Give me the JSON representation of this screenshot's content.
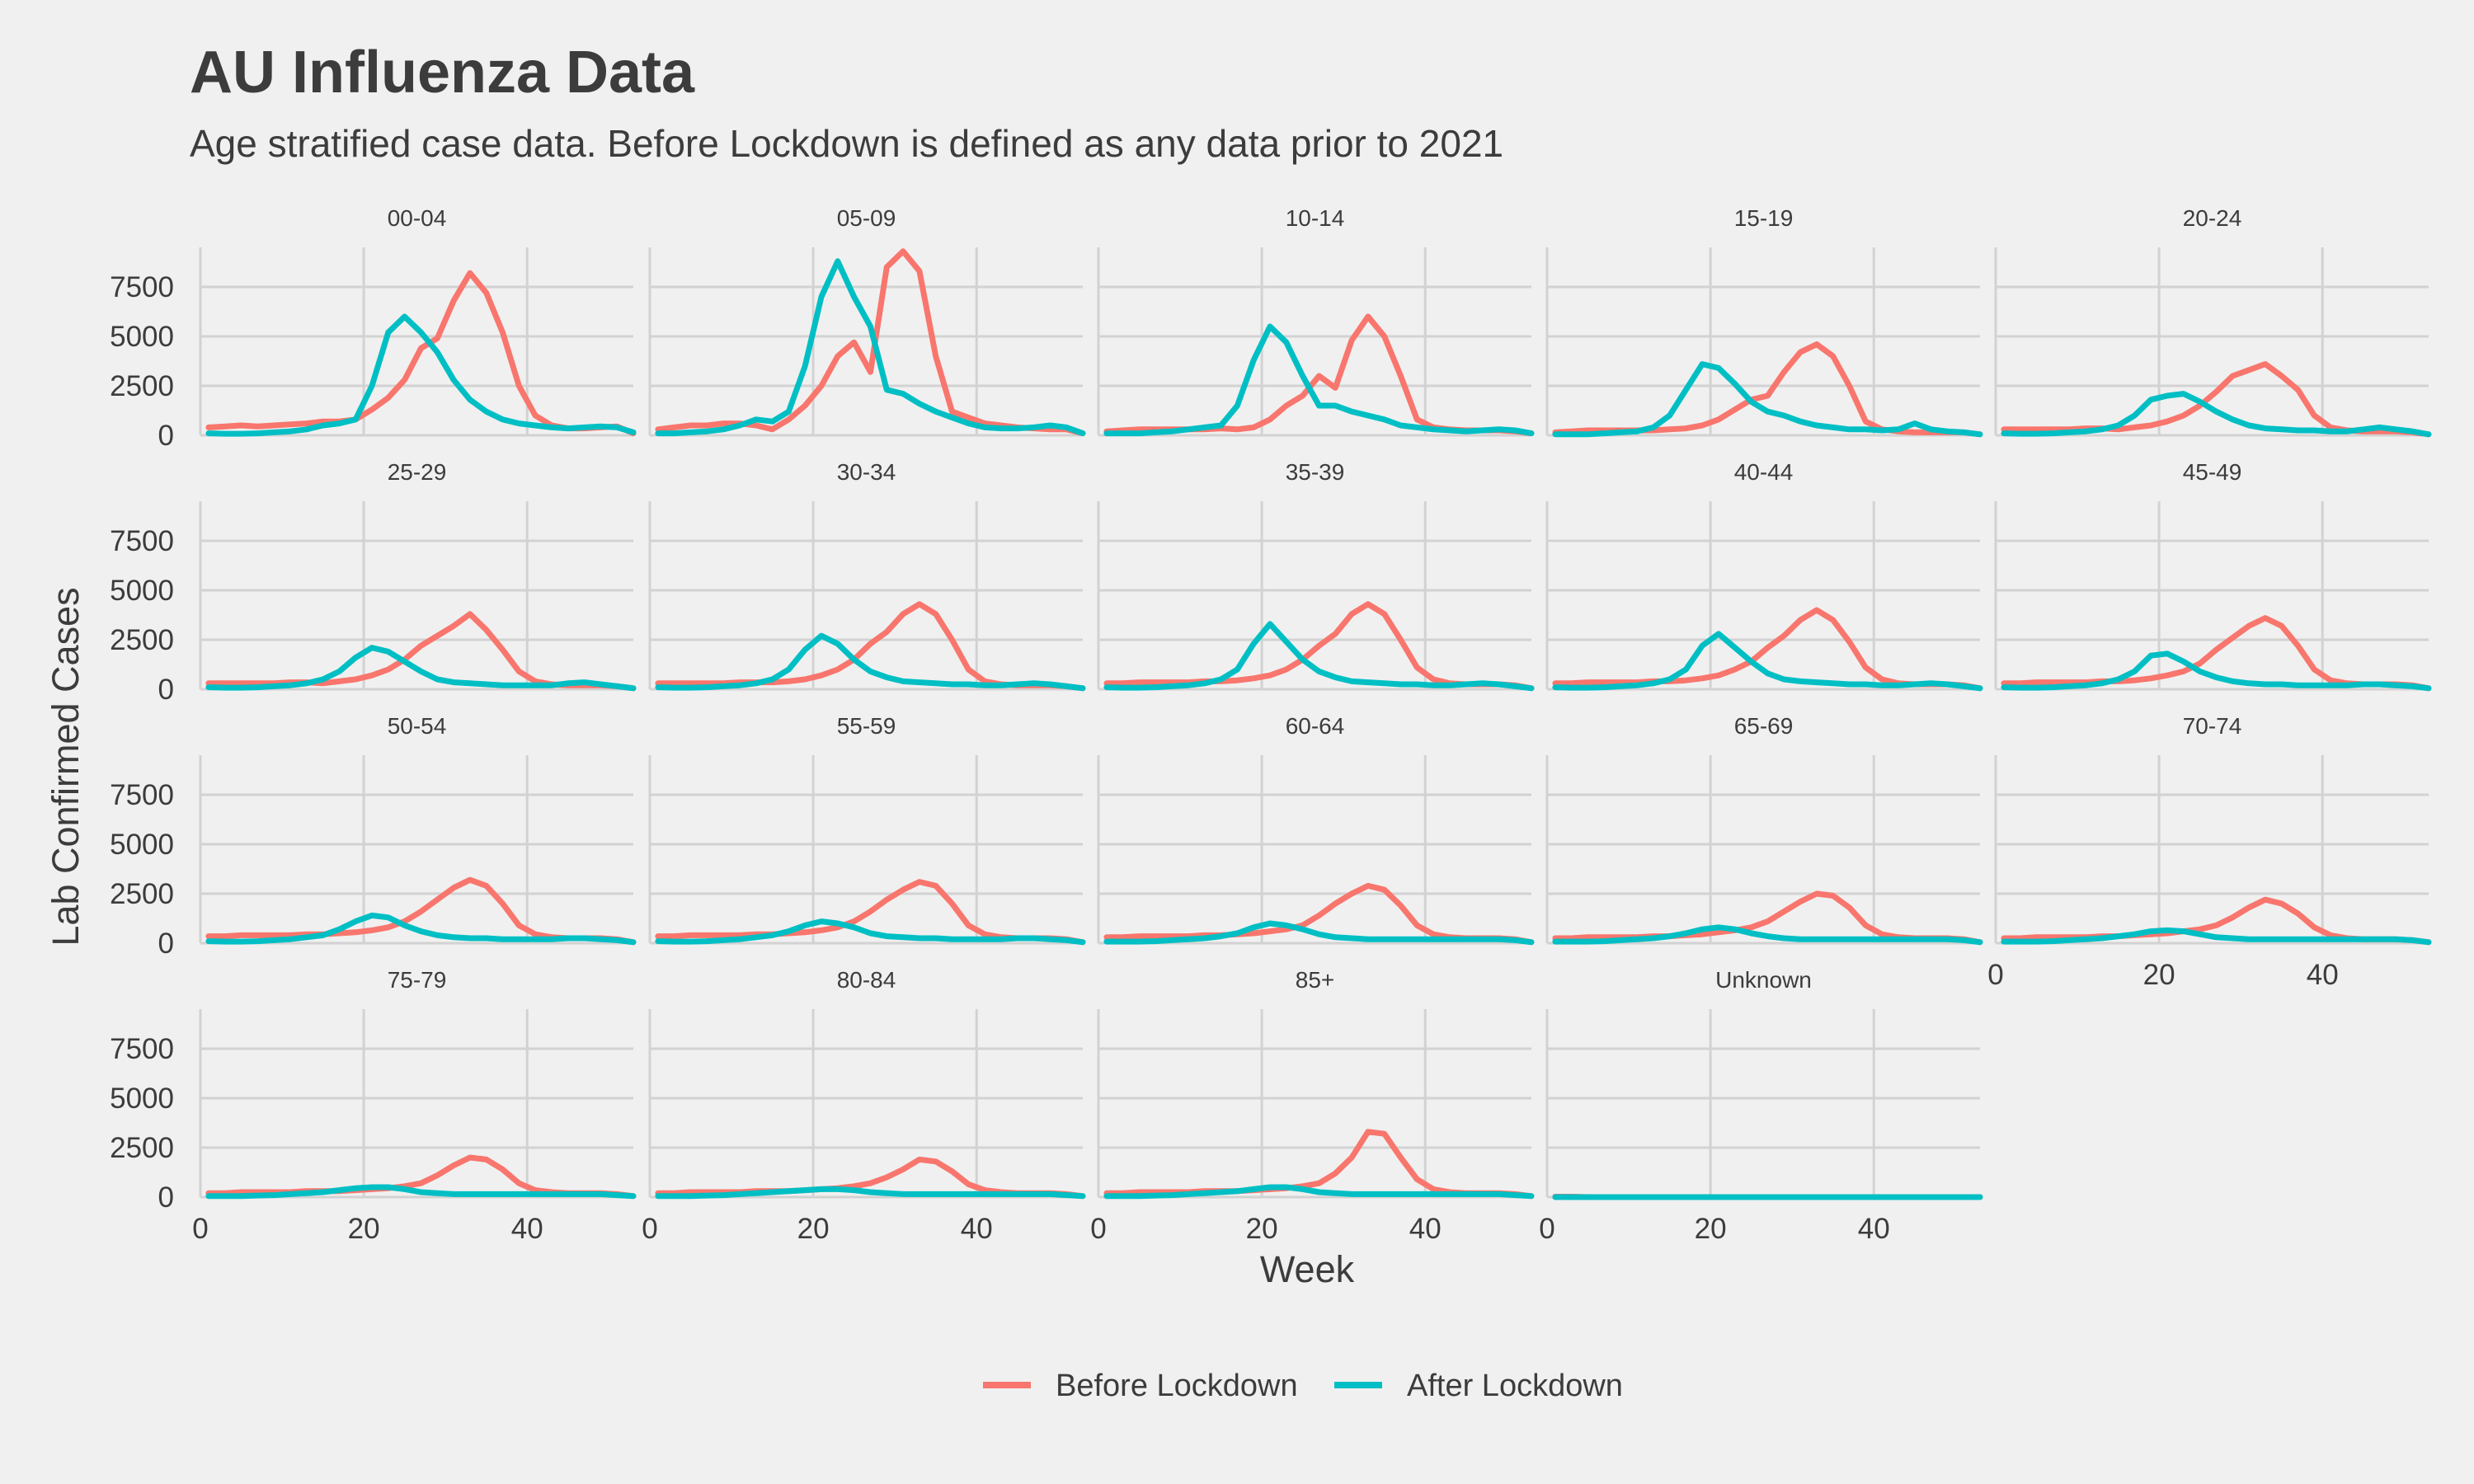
{
  "title": "AU Influenza Data",
  "subtitle": "Age stratified case data. Before Lockdown is defined as any data prior to 2021",
  "chart_data": {
    "type": "line",
    "facet": "wrap",
    "xlabel": "Week",
    "ylabel": "Lab Confirmed Cases",
    "xlim": [
      0,
      53
    ],
    "ylim": [
      0,
      9500
    ],
    "xticks": [
      0,
      20,
      40
    ],
    "yticks": [
      0,
      2500,
      5000,
      7500
    ],
    "grid": true,
    "legend_position": "bottom",
    "legend": [
      {
        "name": "Before Lockdown",
        "color": "#f8766d"
      },
      {
        "name": "After Lockdown",
        "color": "#00bfc4"
      }
    ],
    "x": [
      1,
      3,
      5,
      7,
      9,
      11,
      13,
      15,
      17,
      19,
      21,
      23,
      25,
      27,
      29,
      31,
      33,
      35,
      37,
      39,
      41,
      43,
      45,
      47,
      49,
      51,
      53
    ],
    "panels": [
      {
        "label": "00-04",
        "before": [
          400,
          450,
          500,
          450,
          500,
          550,
          600,
          700,
          700,
          800,
          1300,
          1900,
          2800,
          4400,
          4900,
          6800,
          8200,
          7200,
          5200,
          2500,
          1000,
          500,
          350,
          350,
          400,
          450,
          100
        ],
        "after": [
          100,
          80,
          80,
          100,
          150,
          200,
          300,
          500,
          600,
          800,
          2500,
          5200,
          6000,
          5200,
          4200,
          2800,
          1800,
          1200,
          800,
          600,
          500,
          400,
          350,
          400,
          450,
          400,
          150
        ]
      },
      {
        "label": "05-09",
        "before": [
          300,
          400,
          500,
          500,
          600,
          600,
          500,
          300,
          800,
          1500,
          2500,
          4000,
          4700,
          3200,
          8500,
          9300,
          8300,
          4000,
          1200,
          900,
          600,
          500,
          400,
          350,
          300,
          300,
          100
        ],
        "after": [
          100,
          100,
          150,
          200,
          300,
          500,
          800,
          700,
          1200,
          3500,
          7000,
          8800,
          7000,
          5500,
          2300,
          2100,
          1600,
          1200,
          900,
          600,
          400,
          350,
          350,
          400,
          500,
          400,
          100
        ]
      },
      {
        "label": "10-14",
        "before": [
          200,
          250,
          300,
          300,
          300,
          300,
          300,
          350,
          300,
          400,
          800,
          1500,
          2000,
          3000,
          2400,
          4800,
          6000,
          5000,
          3000,
          800,
          400,
          300,
          250,
          250,
          250,
          200,
          100
        ],
        "after": [
          100,
          100,
          100,
          150,
          200,
          300,
          400,
          500,
          1500,
          3800,
          5500,
          4700,
          3000,
          1500,
          1500,
          1200,
          1000,
          800,
          500,
          400,
          300,
          250,
          200,
          250,
          300,
          250,
          100
        ]
      },
      {
        "label": "15-19",
        "before": [
          150,
          200,
          250,
          250,
          250,
          250,
          250,
          300,
          350,
          500,
          800,
          1300,
          1800,
          2000,
          3200,
          4200,
          4600,
          4000,
          2500,
          700,
          300,
          200,
          150,
          150,
          150,
          150,
          50
        ],
        "after": [
          50,
          50,
          50,
          100,
          150,
          200,
          400,
          1000,
          2300,
          3600,
          3400,
          2600,
          1700,
          1200,
          1000,
          700,
          500,
          400,
          300,
          300,
          250,
          300,
          600,
          300,
          200,
          150,
          50
        ]
      },
      {
        "label": "20-24",
        "before": [
          300,
          300,
          300,
          300,
          300,
          350,
          350,
          300,
          400,
          500,
          700,
          1000,
          1500,
          2200,
          3000,
          3300,
          3600,
          3000,
          2300,
          1000,
          400,
          250,
          200,
          200,
          200,
          150,
          50
        ],
        "after": [
          100,
          80,
          80,
          100,
          150,
          200,
          300,
          500,
          1000,
          1800,
          2000,
          2100,
          1700,
          1200,
          800,
          500,
          350,
          300,
          250,
          250,
          200,
          200,
          300,
          400,
          300,
          200,
          50
        ]
      },
      {
        "label": "25-29",
        "before": [
          300,
          300,
          300,
          300,
          300,
          350,
          350,
          300,
          400,
          500,
          700,
          1000,
          1500,
          2200,
          2700,
          3200,
          3800,
          3000,
          2000,
          900,
          400,
          250,
          200,
          200,
          200,
          150,
          50
        ],
        "after": [
          100,
          80,
          80,
          100,
          150,
          200,
          300,
          500,
          900,
          1600,
          2100,
          1900,
          1400,
          900,
          500,
          350,
          300,
          250,
          200,
          200,
          200,
          200,
          300,
          350,
          250,
          150,
          50
        ]
      },
      {
        "label": "30-34",
        "before": [
          300,
          300,
          300,
          300,
          300,
          350,
          350,
          350,
          400,
          500,
          700,
          1000,
          1500,
          2300,
          2900,
          3800,
          4300,
          3800,
          2500,
          1000,
          400,
          250,
          200,
          200,
          200,
          150,
          50
        ],
        "after": [
          100,
          80,
          80,
          100,
          150,
          200,
          300,
          500,
          1000,
          2000,
          2700,
          2300,
          1500,
          900,
          600,
          400,
          350,
          300,
          250,
          250,
          200,
          200,
          250,
          300,
          250,
          150,
          50
        ]
      },
      {
        "label": "35-39",
        "before": [
          300,
          300,
          350,
          350,
          350,
          350,
          400,
          400,
          450,
          550,
          700,
          1000,
          1500,
          2200,
          2800,
          3800,
          4300,
          3800,
          2500,
          1100,
          500,
          300,
          250,
          250,
          250,
          200,
          50
        ],
        "after": [
          100,
          80,
          80,
          100,
          150,
          200,
          300,
          500,
          1000,
          2300,
          3300,
          2400,
          1500,
          900,
          600,
          400,
          350,
          300,
          250,
          250,
          200,
          200,
          250,
          300,
          250,
          150,
          50
        ]
      },
      {
        "label": "40-44",
        "before": [
          300,
          300,
          350,
          350,
          350,
          350,
          400,
          400,
          450,
          550,
          700,
          1000,
          1400,
          2100,
          2700,
          3500,
          4000,
          3500,
          2400,
          1100,
          500,
          300,
          250,
          250,
          250,
          200,
          50
        ],
        "after": [
          100,
          80,
          80,
          100,
          150,
          200,
          300,
          500,
          1000,
          2200,
          2800,
          2100,
          1400,
          800,
          500,
          400,
          350,
          300,
          250,
          250,
          200,
          200,
          250,
          300,
          250,
          150,
          50
        ]
      },
      {
        "label": "45-49",
        "before": [
          300,
          300,
          350,
          350,
          350,
          350,
          400,
          400,
          450,
          550,
          700,
          900,
          1300,
          2000,
          2600,
          3200,
          3600,
          3200,
          2200,
          1000,
          450,
          300,
          250,
          250,
          250,
          200,
          50
        ],
        "after": [
          100,
          80,
          80,
          100,
          150,
          200,
          300,
          500,
          900,
          1700,
          1800,
          1400,
          900,
          600,
          400,
          300,
          250,
          250,
          200,
          200,
          200,
          200,
          250,
          250,
          200,
          150,
          50
        ]
      },
      {
        "label": "50-54",
        "before": [
          350,
          350,
          400,
          400,
          400,
          400,
          450,
          450,
          500,
          550,
          650,
          800,
          1100,
          1600,
          2200,
          2800,
          3200,
          2900,
          2000,
          900,
          450,
          300,
          250,
          250,
          250,
          200,
          50
        ],
        "after": [
          100,
          80,
          80,
          100,
          150,
          200,
          300,
          400,
          700,
          1100,
          1400,
          1300,
          900,
          600,
          400,
          300,
          250,
          250,
          200,
          200,
          200,
          200,
          250,
          250,
          200,
          150,
          50
        ]
      },
      {
        "label": "55-59",
        "before": [
          350,
          350,
          400,
          400,
          400,
          400,
          450,
          450,
          500,
          550,
          650,
          800,
          1100,
          1600,
          2200,
          2700,
          3100,
          2900,
          2000,
          900,
          450,
          300,
          250,
          250,
          250,
          200,
          50
        ],
        "after": [
          100,
          80,
          80,
          100,
          150,
          200,
          300,
          400,
          600,
          900,
          1100,
          1000,
          800,
          500,
          350,
          300,
          250,
          250,
          200,
          200,
          200,
          200,
          250,
          250,
          200,
          150,
          50
        ]
      },
      {
        "label": "60-64",
        "before": [
          300,
          300,
          350,
          350,
          350,
          350,
          400,
          400,
          450,
          500,
          600,
          700,
          900,
          1400,
          2000,
          2500,
          2900,
          2700,
          1900,
          900,
          450,
          300,
          250,
          250,
          250,
          200,
          50
        ],
        "after": [
          80,
          80,
          80,
          100,
          150,
          200,
          250,
          350,
          500,
          800,
          1000,
          900,
          700,
          450,
          300,
          250,
          200,
          200,
          200,
          200,
          200,
          200,
          200,
          200,
          200,
          150,
          50
        ]
      },
      {
        "label": "65-69",
        "before": [
          250,
          250,
          300,
          300,
          300,
          300,
          350,
          350,
          400,
          450,
          550,
          650,
          800,
          1100,
          1600,
          2100,
          2500,
          2400,
          1800,
          900,
          450,
          300,
          250,
          250,
          250,
          200,
          50
        ],
        "after": [
          80,
          80,
          80,
          100,
          150,
          200,
          250,
          350,
          500,
          700,
          800,
          700,
          500,
          350,
          250,
          200,
          200,
          200,
          200,
          200,
          200,
          200,
          200,
          200,
          200,
          150,
          50
        ]
      },
      {
        "label": "70-74",
        "before": [
          250,
          250,
          300,
          300,
          300,
          300,
          350,
          350,
          400,
          450,
          500,
          600,
          700,
          900,
          1300,
          1800,
          2200,
          2000,
          1500,
          800,
          400,
          250,
          200,
          200,
          200,
          150,
          50
        ],
        "after": [
          80,
          80,
          80,
          100,
          150,
          200,
          250,
          350,
          450,
          600,
          650,
          600,
          450,
          300,
          250,
          200,
          200,
          200,
          200,
          200,
          200,
          200,
          200,
          200,
          200,
          150,
          50
        ]
      },
      {
        "label": "75-79",
        "before": [
          200,
          200,
          250,
          250,
          250,
          250,
          300,
          300,
          300,
          350,
          400,
          450,
          550,
          700,
          1100,
          1600,
          2000,
          1900,
          1400,
          700,
          350,
          250,
          200,
          200,
          200,
          150,
          50
        ],
        "after": [
          50,
          50,
          50,
          80,
          100,
          150,
          200,
          250,
          350,
          450,
          500,
          500,
          400,
          250,
          200,
          150,
          150,
          150,
          150,
          150,
          150,
          150,
          150,
          150,
          150,
          100,
          50
        ]
      },
      {
        "label": "80-84",
        "before": [
          200,
          200,
          250,
          250,
          250,
          250,
          300,
          300,
          300,
          350,
          400,
          450,
          550,
          700,
          1000,
          1400,
          1900,
          1800,
          1300,
          650,
          350,
          250,
          200,
          200,
          200,
          150,
          50
        ],
        "after": [
          50,
          50,
          50,
          80,
          100,
          150,
          200,
          250,
          300,
          350,
          400,
          400,
          350,
          250,
          200,
          150,
          150,
          150,
          150,
          150,
          150,
          150,
          150,
          150,
          150,
          100,
          50
        ]
      },
      {
        "label": "85+",
        "before": [
          200,
          200,
          250,
          250,
          250,
          250,
          300,
          300,
          300,
          350,
          400,
          450,
          550,
          700,
          1200,
          2000,
          3300,
          3200,
          2000,
          900,
          400,
          250,
          200,
          200,
          200,
          150,
          50
        ],
        "after": [
          50,
          50,
          50,
          80,
          100,
          150,
          200,
          250,
          300,
          400,
          500,
          500,
          400,
          250,
          200,
          150,
          150,
          150,
          150,
          150,
          150,
          150,
          150,
          150,
          150,
          100,
          50
        ]
      },
      {
        "label": "Unknown",
        "before": [
          20,
          20,
          0,
          0,
          0,
          0,
          0,
          0,
          0,
          0,
          0,
          0,
          0,
          0,
          0,
          0,
          0,
          0,
          0,
          0,
          0,
          0,
          0,
          0,
          0,
          0,
          0
        ],
        "after": [
          0,
          0,
          0,
          0,
          0,
          0,
          0,
          0,
          0,
          0,
          0,
          0,
          0,
          0,
          0,
          0,
          0,
          0,
          0,
          0,
          0,
          0,
          0,
          0,
          0,
          0,
          0
        ]
      }
    ]
  }
}
